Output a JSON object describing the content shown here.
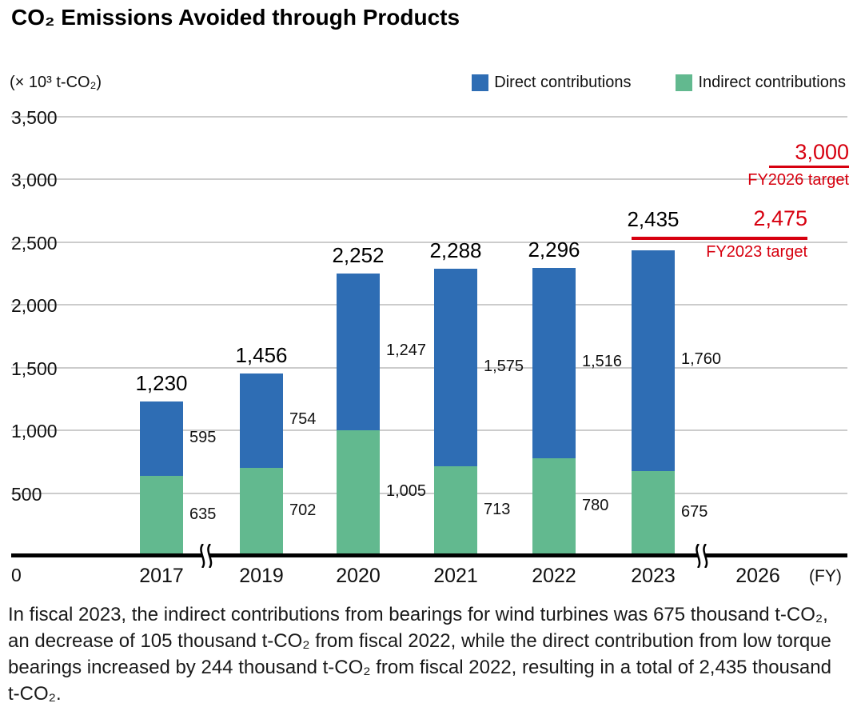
{
  "title": "CO₂ Emissions Avoided through Products",
  "y_axis": {
    "unit_label": "(× 10³ t-CO₂)",
    "tick_labels": [
      "0",
      "500",
      "1,000",
      "1,500",
      "2,000",
      "2,500",
      "3,000",
      "3,500"
    ]
  },
  "x_axis": {
    "suffix_label": "(FY)"
  },
  "chart_data": {
    "type": "bar",
    "stacked": true,
    "title": "CO₂ Emissions Avoided through Products",
    "ylabel": "(× 10³ t-CO₂)",
    "xlabel": "(FY)",
    "ylim": [
      0,
      3500
    ],
    "ytick_step": 500,
    "grid": true,
    "legend_position": "top-right",
    "categories": [
      "2017",
      "2019",
      "2020",
      "2021",
      "2022",
      "2023",
      "2026"
    ],
    "series": [
      {
        "name": "Indirect contributions",
        "color": "#62b98f",
        "values": [
          635,
          702,
          1005,
          713,
          780,
          675,
          null
        ],
        "labels": [
          "635",
          "702",
          "1,005",
          "713",
          "780",
          "675"
        ]
      },
      {
        "name": "Direct contributions",
        "color": "#2e6db4",
        "values": [
          595,
          754,
          1247,
          1575,
          1516,
          1760,
          null
        ],
        "labels": [
          "595",
          "754",
          "1,247",
          "1,575",
          "1,516",
          "1,760"
        ]
      }
    ],
    "totals": {
      "values": [
        1230,
        1456,
        2252,
        2288,
        2296,
        2435,
        null
      ],
      "labels": [
        "1,230",
        "1,456",
        "2,252",
        "2,288",
        "2,296",
        "2,435"
      ]
    },
    "axis_breaks_after": [
      "2017",
      "2023"
    ],
    "targets": [
      {
        "value": 3000,
        "label": "3,000",
        "caption": "FY2026 target"
      },
      {
        "value": 2475,
        "label": "2,475",
        "caption": "FY2023 target"
      }
    ]
  },
  "colors": {
    "direct": "#2e6db4",
    "indirect": "#62b98f",
    "target_red": "#d7000f",
    "gridline": "#cccccc",
    "axis": "#000000",
    "text": "#1a1a1a"
  },
  "footnote": "In fiscal 2023, the indirect contributions from bearings for wind turbines was 675 thousand t-CO₂, an decrease of 105 thousand t-CO₂ from fiscal 2022, while the direct contribution from low torque bearings increased by 244 thousand t-CO₂ from fiscal 2022, resulting in a total of 2,435 thousand t-CO₂."
}
